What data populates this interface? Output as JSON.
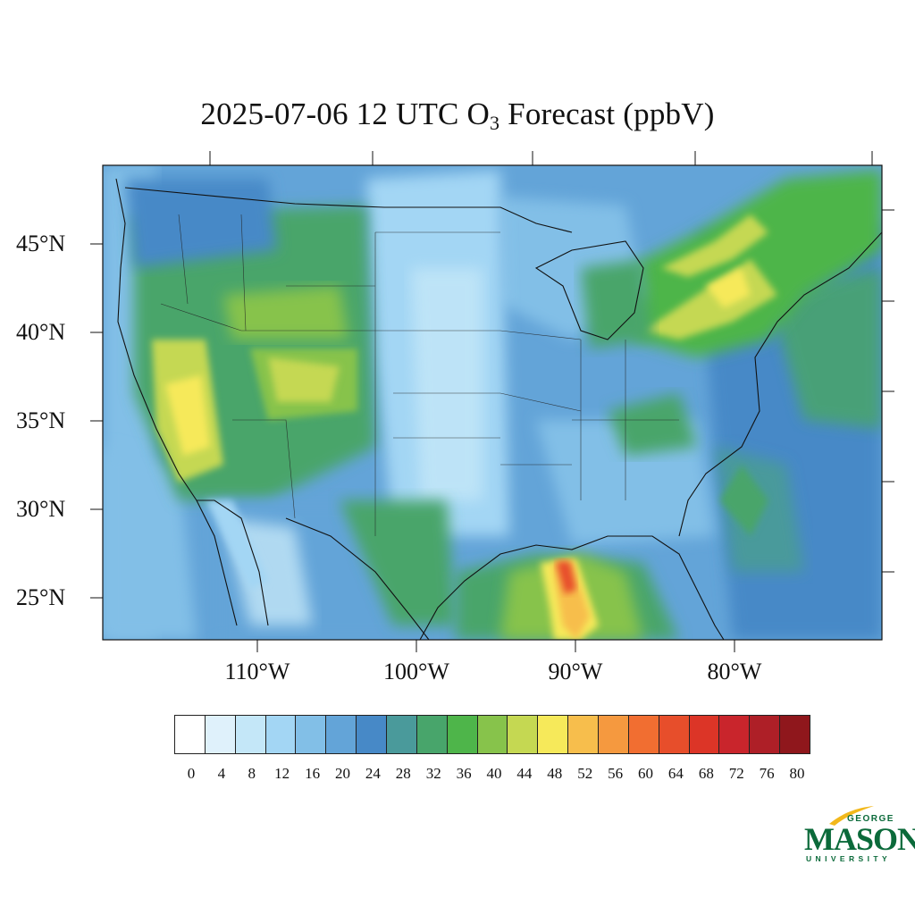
{
  "title_main": "2025-07-06 12 UTC O",
  "title_sub": "3",
  "title_tail": " Forecast (ppbV)",
  "lat_labels": [
    "45°N",
    "40°N",
    "35°N",
    "30°N",
    "25°N"
  ],
  "lon_labels": [
    "110°W",
    "100°W",
    "90°W",
    "80°W"
  ],
  "colorbar": {
    "ticks": [
      "0",
      "4",
      "8",
      "12",
      "16",
      "20",
      "24",
      "28",
      "32",
      "36",
      "40",
      "44",
      "48",
      "52",
      "56",
      "60",
      "64",
      "68",
      "72",
      "76",
      "80"
    ],
    "colors": [
      "#ffffff",
      "#dff1fb",
      "#c4e7f8",
      "#a3d6f4",
      "#82bfe7",
      "#63a4d8",
      "#4789c7",
      "#4a9a9b",
      "#48a56b",
      "#4eb54a",
      "#87c34b",
      "#c5d852",
      "#f6e95a",
      "#f7be4c",
      "#f5993f",
      "#f16e31",
      "#e74e2b",
      "#dc3527",
      "#c9252c",
      "#ae1f27",
      "#8f171c"
    ]
  },
  "logo": {
    "top": "GEORGE",
    "main": "MASON",
    "bottom": "UNIVERSITY"
  }
}
